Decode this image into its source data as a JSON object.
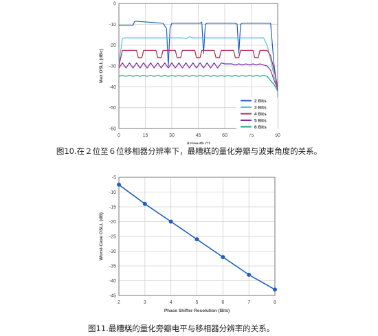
{
  "chart_data": [
    {
      "type": "line",
      "xlabel": "Azimuth (°)",
      "ylabel": "Max OSLL (dBc)",
      "xlim": [
        0,
        90
      ],
      "ylim": [
        -60,
        0
      ],
      "xticks": [
        "0",
        "15",
        "30",
        "45",
        "60",
        "75",
        "90"
      ],
      "yticks": [
        "0",
        "-10",
        "-20",
        "-30",
        "-40",
        "-50",
        "-60"
      ],
      "grid": true,
      "legend_position": "bottom-right",
      "caption": "图10.在２位至６位移相器分辨率下，最糟糕的量化旁瓣与波束角度的关系。",
      "series": [
        {
          "name": "2 Bits",
          "color": "#1f5fbf",
          "x": [
            0,
            8,
            9,
            25,
            27,
            28,
            29,
            30,
            46,
            47,
            48,
            49,
            50,
            66,
            67,
            68,
            69,
            70,
            86,
            88,
            90
          ],
          "y": [
            -10.5,
            -10.5,
            -8.5,
            -9.5,
            -12,
            -30,
            -12,
            -9.5,
            -9.5,
            -9,
            -24,
            -10,
            -9.5,
            -9.5,
            -10,
            -24,
            -10,
            -9.5,
            -9.5,
            -30,
            -42
          ]
        },
        {
          "name": "3 Bits",
          "color": "#4ec3e8",
          "x": [
            0,
            2,
            3,
            36,
            38,
            40,
            42,
            70,
            82,
            84,
            86,
            88,
            90
          ],
          "y": [
            -29,
            -17,
            -16.5,
            -16.5,
            -17,
            -16,
            -16.5,
            -16.5,
            -16.5,
            -20,
            -27,
            -35,
            -41
          ]
        },
        {
          "name": "4 Bits",
          "color": "#b5234b",
          "x": [
            0,
            2,
            3,
            10,
            11,
            13,
            14,
            21,
            22,
            24,
            25,
            32,
            33,
            35,
            36,
            43,
            44,
            46,
            47,
            54,
            55,
            57,
            58,
            65,
            66,
            68,
            69,
            76,
            77,
            79,
            80,
            84,
            86,
            88,
            90
          ],
          "y": [
            -30,
            -22.5,
            -22.5,
            -22.5,
            -26,
            -26,
            -22.5,
            -22.5,
            -26,
            -26,
            -22.5,
            -22.5,
            -26,
            -26,
            -22.5,
            -22.5,
            -26,
            -26,
            -22.5,
            -22.5,
            -26,
            -26,
            -22.5,
            -22.5,
            -26,
            -26,
            -22.5,
            -22.5,
            -26,
            -26,
            -22.5,
            -22.5,
            -25,
            -32,
            -40
          ]
        },
        {
          "name": "5 Bits",
          "color": "#7a2fa3",
          "x": [
            0,
            2,
            4,
            6,
            8,
            10,
            12,
            14,
            16,
            18,
            20,
            22,
            24,
            26,
            28,
            30,
            32,
            34,
            36,
            38,
            40,
            42,
            44,
            46,
            48,
            50,
            52,
            54,
            56,
            58,
            60,
            62,
            64,
            66,
            68,
            70,
            72,
            74,
            76,
            78,
            80,
            82,
            84,
            86,
            88,
            90
          ],
          "y": [
            -31,
            -28.5,
            -31,
            -28.5,
            -31,
            -28.5,
            -31,
            -28.5,
            -31,
            -28.5,
            -31,
            -28.5,
            -31,
            -28.5,
            -31,
            -28.5,
            -31,
            -28.5,
            -31,
            -28.5,
            -31,
            -28.5,
            -31,
            -28.5,
            -31,
            -28.5,
            -31,
            -28.5,
            -31,
            -28.5,
            -29,
            -29,
            -29,
            -29.5,
            -29,
            -29.5,
            -29,
            -29.5,
            -29,
            -29.5,
            -29,
            -29.5,
            -30,
            -32,
            -37,
            -41
          ]
        },
        {
          "name": "6 Bits",
          "color": "#1aa37a",
          "x": [
            0,
            2,
            4,
            6,
            8,
            10,
            12,
            14,
            16,
            18,
            20,
            22,
            24,
            26,
            28,
            30,
            32,
            34,
            36,
            38,
            40,
            42,
            44,
            46,
            48,
            50,
            52,
            54,
            56,
            58,
            60,
            62,
            64,
            66,
            68,
            70,
            72,
            74,
            76,
            78,
            80,
            82,
            84,
            86,
            88,
            90
          ],
          "y": [
            -35,
            -34.5,
            -35,
            -34.5,
            -35,
            -34.5,
            -35,
            -34.5,
            -35,
            -34.5,
            -35,
            -34.5,
            -35,
            -34.5,
            -35,
            -34.5,
            -35,
            -34.5,
            -35,
            -34.5,
            -35,
            -34.5,
            -35,
            -34.5,
            -35,
            -34.5,
            -35,
            -34.5,
            -35,
            -34.5,
            -35,
            -34.5,
            -35,
            -34.5,
            -35,
            -34.5,
            -35,
            -34.5,
            -35,
            -34.5,
            -35,
            -34.5,
            -35,
            -37,
            -39,
            -42
          ]
        }
      ]
    },
    {
      "type": "line",
      "xlabel": "Phase Shifter Resolution (Bits)",
      "ylabel": "Worst-Case OSLL (dB)",
      "xlim": [
        2,
        8
      ],
      "ylim": [
        -45,
        -5
      ],
      "xticks": [
        "2",
        "3",
        "4",
        "5",
        "6",
        "7",
        "8"
      ],
      "yticks": [
        "-5",
        "-10",
        "-15",
        "-20",
        "-25",
        "-30",
        "-35",
        "-40",
        "-45"
      ],
      "grid": true,
      "caption": "图11.最糟糕的量化旁瓣电平与移相器分辨率的关系。",
      "series": [
        {
          "color": "#1f5fbf",
          "x": [
            2,
            3,
            4,
            5,
            6,
            7,
            8
          ],
          "y": [
            -7.5,
            -14,
            -20,
            -26,
            -32,
            -38,
            -43
          ]
        }
      ]
    }
  ]
}
